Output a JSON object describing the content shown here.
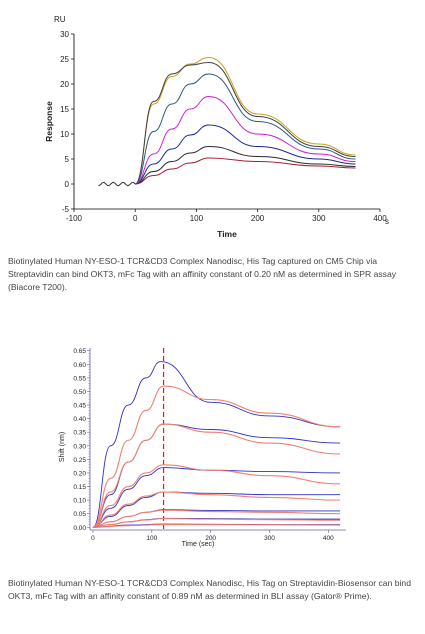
{
  "chart_data": [
    {
      "type": "line",
      "ylabel": "Response",
      "xlabel": "Time",
      "y_unit": "RU",
      "x_unit": "s",
      "xlim": [
        -100,
        400
      ],
      "ylim": [
        -5,
        30
      ],
      "x_ticks": [
        "-100",
        "0",
        "100",
        "200",
        "300",
        "400"
      ],
      "y_ticks": [
        "-5",
        "0",
        "5",
        "10",
        "15",
        "20",
        "25",
        "30"
      ],
      "grid": false,
      "injection_start": 0,
      "dissociation_start": 120,
      "series": [
        {
          "color": "#c8a020",
          "values": [
            {
              "x": 0,
              "y": 0
            },
            {
              "x": 30,
              "y": 16.0
            },
            {
              "x": 60,
              "y": 21.5
            },
            {
              "x": 90,
              "y": 24.0
            },
            {
              "x": 120,
              "y": 25.3
            },
            {
              "x": 200,
              "y": 14.0
            },
            {
              "x": 300,
              "y": 8.0
            },
            {
              "x": 360,
              "y": 5.8
            }
          ]
        },
        {
          "color": "#404040",
          "values": [
            {
              "x": 0,
              "y": 0
            },
            {
              "x": 30,
              "y": 16.5
            },
            {
              "x": 60,
              "y": 22.0
            },
            {
              "x": 90,
              "y": 23.8
            },
            {
              "x": 120,
              "y": 24.3
            },
            {
              "x": 200,
              "y": 13.5
            },
            {
              "x": 300,
              "y": 7.5
            },
            {
              "x": 360,
              "y": 5.5
            }
          ]
        },
        {
          "color": "#2a5a7a",
          "values": [
            {
              "x": 0,
              "y": 0
            },
            {
              "x": 30,
              "y": 10.5
            },
            {
              "x": 60,
              "y": 16.0
            },
            {
              "x": 90,
              "y": 20.0
            },
            {
              "x": 120,
              "y": 22.0
            },
            {
              "x": 200,
              "y": 12.5
            },
            {
              "x": 300,
              "y": 7.0
            },
            {
              "x": 360,
              "y": 5.0
            }
          ]
        },
        {
          "color": "#d020d0",
          "values": [
            {
              "x": 0,
              "y": 0
            },
            {
              "x": 30,
              "y": 6.0
            },
            {
              "x": 60,
              "y": 11.0
            },
            {
              "x": 90,
              "y": 15.0
            },
            {
              "x": 120,
              "y": 17.5
            },
            {
              "x": 200,
              "y": 10.0
            },
            {
              "x": 300,
              "y": 6.0
            },
            {
              "x": 360,
              "y": 4.5
            }
          ]
        },
        {
          "color": "#1a2a9a",
          "values": [
            {
              "x": 0,
              "y": 0
            },
            {
              "x": 30,
              "y": 4.0
            },
            {
              "x": 60,
              "y": 7.0
            },
            {
              "x": 90,
              "y": 9.8
            },
            {
              "x": 120,
              "y": 11.8
            },
            {
              "x": 200,
              "y": 7.5
            },
            {
              "x": 300,
              "y": 5.0
            },
            {
              "x": 360,
              "y": 4.0
            }
          ]
        },
        {
          "color": "#2a2a2a",
          "values": [
            {
              "x": 0,
              "y": 0
            },
            {
              "x": 30,
              "y": 2.5
            },
            {
              "x": 60,
              "y": 4.5
            },
            {
              "x": 90,
              "y": 6.2
            },
            {
              "x": 120,
              "y": 7.5
            },
            {
              "x": 200,
              "y": 5.5
            },
            {
              "x": 300,
              "y": 4.0
            },
            {
              "x": 360,
              "y": 3.5
            }
          ]
        },
        {
          "color": "#a02030",
          "values": [
            {
              "x": 0,
              "y": 0
            },
            {
              "x": 30,
              "y": 1.7
            },
            {
              "x": 60,
              "y": 3.0
            },
            {
              "x": 90,
              "y": 4.2
            },
            {
              "x": 120,
              "y": 5.2
            },
            {
              "x": 200,
              "y": 4.5
            },
            {
              "x": 300,
              "y": 3.6
            },
            {
              "x": 360,
              "y": 3.2
            }
          ]
        }
      ]
    },
    {
      "type": "line",
      "ylabel": "Shift (nm)",
      "xlabel": "Time (sec)",
      "xlim": [
        -5,
        430
      ],
      "ylim": [
        -0.01,
        0.66
      ],
      "x_ticks": [
        "0",
        "100",
        "200",
        "300",
        "400"
      ],
      "y_ticks": [
        "0.00",
        "0.05",
        "0.10",
        "0.15",
        "0.20",
        "0.25",
        "0.30",
        "0.35",
        "0.40",
        "0.45",
        "0.50",
        "0.55",
        "0.60",
        "0.65"
      ],
      "grid": false,
      "dissociation_start": 120,
      "marker_color": "#d02020",
      "measured_color": "#3030c0",
      "fit_color": "#f08070",
      "series": [
        {
          "kind": "measured",
          "values": [
            {
              "x": 0,
              "y": 0
            },
            {
              "x": 30,
              "y": 0.3
            },
            {
              "x": 60,
              "y": 0.45
            },
            {
              "x": 90,
              "y": 0.55
            },
            {
              "x": 115,
              "y": 0.61
            },
            {
              "x": 200,
              "y": 0.46
            },
            {
              "x": 300,
              "y": 0.41
            },
            {
              "x": 420,
              "y": 0.37
            }
          ]
        },
        {
          "kind": "fit",
          "values": [
            {
              "x": 0,
              "y": 0
            },
            {
              "x": 30,
              "y": 0.18
            },
            {
              "x": 60,
              "y": 0.32
            },
            {
              "x": 90,
              "y": 0.43
            },
            {
              "x": 120,
              "y": 0.52
            },
            {
              "x": 200,
              "y": 0.47
            },
            {
              "x": 300,
              "y": 0.42
            },
            {
              "x": 420,
              "y": 0.37
            }
          ]
        },
        {
          "kind": "measured",
          "values": [
            {
              "x": 0,
              "y": 0
            },
            {
              "x": 30,
              "y": 0.12
            },
            {
              "x": 60,
              "y": 0.24
            },
            {
              "x": 90,
              "y": 0.32
            },
            {
              "x": 120,
              "y": 0.38
            },
            {
              "x": 200,
              "y": 0.36
            },
            {
              "x": 300,
              "y": 0.33
            },
            {
              "x": 420,
              "y": 0.31
            }
          ]
        },
        {
          "kind": "fit",
          "values": [
            {
              "x": 0,
              "y": 0
            },
            {
              "x": 30,
              "y": 0.13
            },
            {
              "x": 60,
              "y": 0.24
            },
            {
              "x": 90,
              "y": 0.32
            },
            {
              "x": 120,
              "y": 0.38
            },
            {
              "x": 200,
              "y": 0.35
            },
            {
              "x": 300,
              "y": 0.31
            },
            {
              "x": 420,
              "y": 0.27
            }
          ]
        },
        {
          "kind": "measured",
          "values": [
            {
              "x": 0,
              "y": 0
            },
            {
              "x": 30,
              "y": 0.07
            },
            {
              "x": 60,
              "y": 0.14
            },
            {
              "x": 90,
              "y": 0.19
            },
            {
              "x": 120,
              "y": 0.22
            },
            {
              "x": 200,
              "y": 0.21
            },
            {
              "x": 300,
              "y": 0.205
            },
            {
              "x": 420,
              "y": 0.2
            }
          ]
        },
        {
          "kind": "fit",
          "values": [
            {
              "x": 0,
              "y": 0
            },
            {
              "x": 30,
              "y": 0.08
            },
            {
              "x": 60,
              "y": 0.15
            },
            {
              "x": 90,
              "y": 0.2
            },
            {
              "x": 120,
              "y": 0.23
            },
            {
              "x": 200,
              "y": 0.21
            },
            {
              "x": 300,
              "y": 0.19
            },
            {
              "x": 420,
              "y": 0.16
            }
          ]
        },
        {
          "kind": "measured",
          "values": [
            {
              "x": 0,
              "y": 0
            },
            {
              "x": 30,
              "y": 0.04
            },
            {
              "x": 60,
              "y": 0.08
            },
            {
              "x": 90,
              "y": 0.11
            },
            {
              "x": 120,
              "y": 0.13
            },
            {
              "x": 200,
              "y": 0.125
            },
            {
              "x": 300,
              "y": 0.12
            },
            {
              "x": 420,
              "y": 0.12
            }
          ]
        },
        {
          "kind": "fit",
          "values": [
            {
              "x": 0,
              "y": 0
            },
            {
              "x": 30,
              "y": 0.045
            },
            {
              "x": 60,
              "y": 0.085
            },
            {
              "x": 90,
              "y": 0.115
            },
            {
              "x": 120,
              "y": 0.13
            },
            {
              "x": 200,
              "y": 0.12
            },
            {
              "x": 300,
              "y": 0.11
            },
            {
              "x": 420,
              "y": 0.1
            }
          ]
        },
        {
          "kind": "measured",
          "values": [
            {
              "x": 0,
              "y": 0
            },
            {
              "x": 30,
              "y": 0.02
            },
            {
              "x": 60,
              "y": 0.04
            },
            {
              "x": 90,
              "y": 0.055
            },
            {
              "x": 120,
              "y": 0.065
            },
            {
              "x": 200,
              "y": 0.062
            },
            {
              "x": 300,
              "y": 0.06
            },
            {
              "x": 420,
              "y": 0.06
            }
          ]
        },
        {
          "kind": "fit",
          "values": [
            {
              "x": 0,
              "y": 0
            },
            {
              "x": 30,
              "y": 0.02
            },
            {
              "x": 60,
              "y": 0.04
            },
            {
              "x": 90,
              "y": 0.055
            },
            {
              "x": 120,
              "y": 0.063
            },
            {
              "x": 200,
              "y": 0.058
            },
            {
              "x": 300,
              "y": 0.055
            },
            {
              "x": 420,
              "y": 0.05
            }
          ]
        },
        {
          "kind": "measured",
          "values": [
            {
              "x": 0,
              "y": 0
            },
            {
              "x": 30,
              "y": 0.01
            },
            {
              "x": 60,
              "y": 0.02
            },
            {
              "x": 90,
              "y": 0.028
            },
            {
              "x": 120,
              "y": 0.033
            },
            {
              "x": 200,
              "y": 0.032
            },
            {
              "x": 300,
              "y": 0.03
            },
            {
              "x": 420,
              "y": 0.03
            }
          ]
        },
        {
          "kind": "fit",
          "values": [
            {
              "x": 0,
              "y": 0
            },
            {
              "x": 30,
              "y": 0.01
            },
            {
              "x": 60,
              "y": 0.02
            },
            {
              "x": 90,
              "y": 0.027
            },
            {
              "x": 120,
              "y": 0.032
            },
            {
              "x": 200,
              "y": 0.03
            },
            {
              "x": 300,
              "y": 0.028
            },
            {
              "x": 420,
              "y": 0.026
            }
          ]
        },
        {
          "kind": "measured",
          "values": [
            {
              "x": 0,
              "y": 0
            },
            {
              "x": 60,
              "y": 0.008
            },
            {
              "x": 120,
              "y": 0.012
            },
            {
              "x": 300,
              "y": 0.01
            },
            {
              "x": 420,
              "y": 0.01
            }
          ]
        },
        {
          "kind": "fit",
          "values": [
            {
              "x": 0,
              "y": 0
            },
            {
              "x": 60,
              "y": 0.006
            },
            {
              "x": 120,
              "y": 0.01
            },
            {
              "x": 300,
              "y": 0.009
            },
            {
              "x": 420,
              "y": 0.008
            }
          ]
        }
      ]
    }
  ],
  "captions": [
    "Biotinylated Human NY-ESO-1 TCR&CD3 Complex Nanodisc, His Tag captured on CM5 Chip via Streptavidin can bind OKT3, mFc Tag with an affinity constant of 0.20 nM as determined in SPR assay (Biacore T200).",
    "Biotinylated Human NY-ESO-1 TCR&CD3 Complex Nanodisc, His Tag on Streptavidin-Biosensor can bind OKT3, mFc Tag with an affinity constant of 0.89 nM as determined in BLI assay (Gator® Prime)."
  ]
}
